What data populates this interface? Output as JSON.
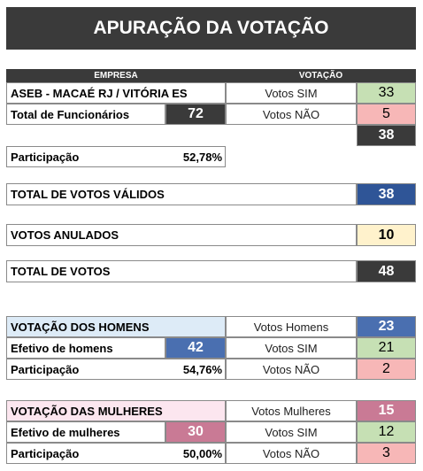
{
  "title": "APURAÇÃO DA VOTAÇÃO",
  "header": {
    "company": "EMPRESA",
    "voting": "VOTAÇÃO"
  },
  "company": {
    "name": "ASEB - MACAÉ RJ / VITÓRIA ES",
    "employees_label": "Total de Funcionários",
    "employees": 72,
    "yes_label": "Votos SIM",
    "yes": 33,
    "no_label": "Votos NÃO",
    "no": 5,
    "total": 38,
    "participation_label": "Participação",
    "participation": "52,78%"
  },
  "valid_votes": {
    "label": "TOTAL DE VOTOS VÁLIDOS",
    "value": 38
  },
  "annulled_votes": {
    "label": "VOTOS ANULADOS",
    "value": 10
  },
  "total_votes": {
    "label": "TOTAL DE VOTOS",
    "value": 48
  },
  "men": {
    "title": "VOTAÇÃO DOS HOMENS",
    "votes_label": "Votos Homens",
    "votes": 23,
    "staff_label": "Efetivo de homens",
    "staff": 42,
    "yes_label": "Votos SIM",
    "yes": 21,
    "no_label": "Votos NÃO",
    "no": 2,
    "participation_label": "Participação",
    "participation": "54,76%"
  },
  "women": {
    "title": "VOTAÇÃO DAS MULHERES",
    "votes_label": "Votos Mulheres",
    "votes": 15,
    "staff_label": "Efetivo de mulheres",
    "staff": 30,
    "yes_label": "Votos SIM",
    "yes": 12,
    "no_label": "Votos NÃO",
    "no": 3,
    "participation_label": "Participação",
    "participation": "50,00%"
  }
}
